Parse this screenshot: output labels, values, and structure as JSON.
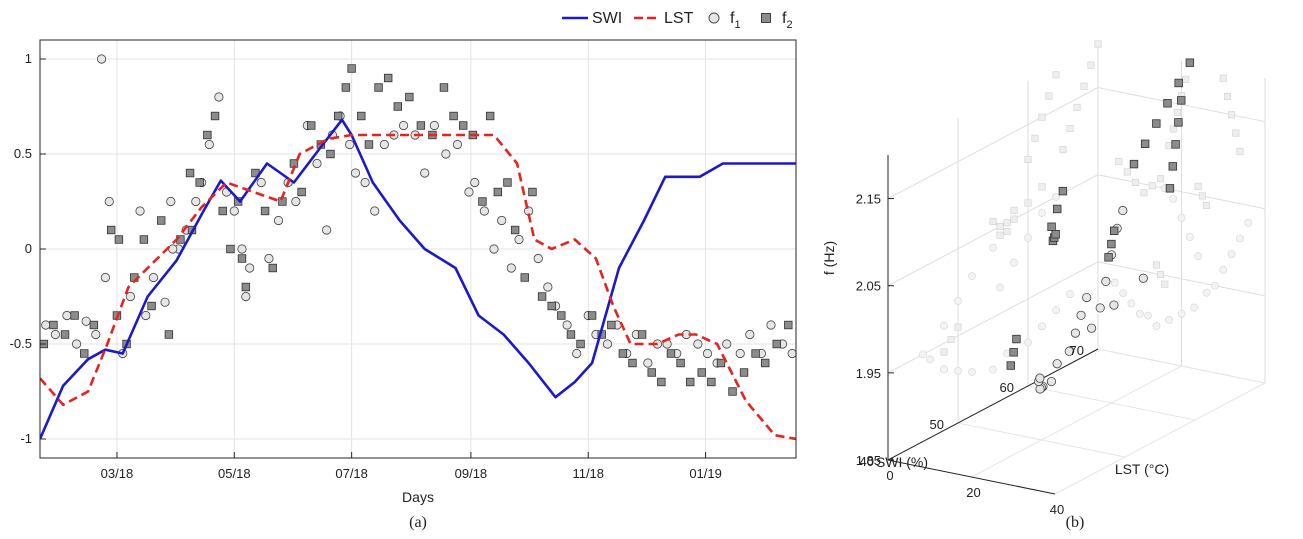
{
  "chart_data": [
    {
      "panel": "(a)",
      "type": "line",
      "xlabel": "Days",
      "ylabel": "",
      "ylim": [
        -1.1,
        1.1
      ],
      "yticks": [
        -1,
        -0.5,
        0,
        0.5,
        1
      ],
      "ytick_labels": [
        "-1",
        "-0.5",
        "0",
        "0.5",
        "1"
      ],
      "xlim": [
        "2018-01-20",
        "2019-02-17"
      ],
      "xticks": [
        "2018-03-01",
        "2018-05-01",
        "2018-07-01",
        "2018-09-01",
        "2018-11-01",
        "2019-01-01"
      ],
      "xtick_labels": [
        "03/18",
        "05/18",
        "07/18",
        "09/18",
        "11/18",
        "01/19"
      ],
      "grid": true,
      "legend_position": "top-right",
      "series": [
        {
          "name": "SWI",
          "kind": "line",
          "color": "#1a1acc",
          "style": "solid",
          "x": [
            "2018-01-20",
            "2018-02-01",
            "2018-02-14",
            "2018-02-23",
            "2018-03-04",
            "2018-03-17",
            "2018-04-01",
            "2018-04-15",
            "2018-04-24",
            "2018-05-04",
            "2018-05-18",
            "2018-06-01",
            "2018-06-16",
            "2018-06-26",
            "2018-07-01",
            "2018-07-12",
            "2018-07-26",
            "2018-08-08",
            "2018-08-24",
            "2018-09-05",
            "2018-09-18",
            "2018-10-01",
            "2018-10-15",
            "2018-10-25",
            "2018-11-03",
            "2018-11-17",
            "2018-11-30",
            "2018-12-11",
            "2018-12-29",
            "2019-01-10",
            "2019-01-31",
            "2019-02-17"
          ],
          "y": [
            -1.0,
            -0.72,
            -0.58,
            -0.53,
            -0.55,
            -0.25,
            -0.06,
            0.2,
            0.36,
            0.25,
            0.45,
            0.35,
            0.55,
            0.68,
            0.6,
            0.35,
            0.15,
            0.0,
            -0.1,
            -0.35,
            -0.45,
            -0.6,
            -0.78,
            -0.7,
            -0.6,
            -0.1,
            0.15,
            0.38,
            0.38,
            0.45,
            0.45,
            0.45
          ]
        },
        {
          "name": "LST",
          "kind": "line",
          "color": "#e8221e",
          "style": "dashed",
          "x": [
            "2018-01-20",
            "2018-02-01",
            "2018-02-14",
            "2018-02-24",
            "2018-03-07",
            "2018-03-19",
            "2018-04-01",
            "2018-04-14",
            "2018-04-27",
            "2018-05-11",
            "2018-05-25",
            "2018-06-04",
            "2018-06-19",
            "2018-07-01",
            "2018-07-15",
            "2018-08-01",
            "2018-08-22",
            "2018-09-13",
            "2018-09-25",
            "2018-10-04",
            "2018-10-13",
            "2018-10-25",
            "2018-11-05",
            "2018-11-14",
            "2018-11-23",
            "2018-12-07",
            "2018-12-18",
            "2018-12-27",
            "2019-01-07",
            "2019-01-22",
            "2019-02-06",
            "2019-02-17"
          ],
          "y": [
            -0.68,
            -0.82,
            -0.75,
            -0.5,
            -0.2,
            -0.08,
            0.05,
            0.22,
            0.35,
            0.3,
            0.25,
            0.5,
            0.58,
            0.6,
            0.6,
            0.6,
            0.6,
            0.6,
            0.45,
            0.05,
            0.0,
            0.05,
            -0.05,
            -0.3,
            -0.5,
            -0.5,
            -0.45,
            -0.45,
            -0.5,
            -0.8,
            -0.98,
            -1.0
          ]
        },
        {
          "name": "f1",
          "kind": "scatter",
          "marker": "circle",
          "color": "#e6e6e6",
          "x": [
            "2018-01-23",
            "2018-01-28",
            "2018-02-03",
            "2018-02-08",
            "2018-02-13",
            "2018-02-18",
            "2018-02-23",
            "2018-02-25",
            "2018-03-04",
            "2018-03-08",
            "2018-03-13",
            "2018-03-16",
            "2018-03-20",
            "2018-03-26",
            "2018-03-29",
            "2018-04-02",
            "2018-04-06",
            "2018-04-11",
            "2018-04-14",
            "2018-04-18",
            "2018-04-23",
            "2018-04-27",
            "2018-05-01",
            "2018-05-05",
            "2018-05-09",
            "2018-05-15",
            "2018-05-19",
            "2018-05-24",
            "2018-05-29",
            "2018-06-02",
            "2018-06-08",
            "2018-06-13",
            "2018-06-18",
            "2018-06-21",
            "2018-06-25",
            "2018-06-30",
            "2018-07-03",
            "2018-07-08",
            "2018-07-13",
            "2018-07-18",
            "2018-07-23",
            "2018-07-28",
            "2018-08-03",
            "2018-08-08",
            "2018-08-13",
            "2018-08-19",
            "2018-08-25",
            "2018-08-31",
            "2018-09-03",
            "2018-09-08",
            "2018-09-13",
            "2018-09-17",
            "2018-09-22",
            "2018-09-26",
            "2018-10-01",
            "2018-10-06",
            "2018-10-11",
            "2018-10-15",
            "2018-10-21",
            "2018-10-26",
            "2018-11-01",
            "2018-11-05",
            "2018-11-11",
            "2018-11-16",
            "2018-11-21",
            "2018-11-26",
            "2018-12-02",
            "2018-12-07",
            "2018-12-12",
            "2018-12-17",
            "2018-12-22",
            "2018-12-28",
            "2019-01-02",
            "2019-01-07",
            "2019-01-12",
            "2019-01-19",
            "2019-01-24",
            "2019-01-30",
            "2019-02-04",
            "2019-02-10",
            "2019-02-15",
            "2018-02-21",
            "2018-05-07",
            "2018-03-30"
          ],
          "y": [
            -0.4,
            -0.45,
            -0.35,
            -0.5,
            -0.38,
            -0.45,
            -0.15,
            0.25,
            -0.55,
            -0.25,
            0.2,
            -0.35,
            -0.15,
            -0.28,
            0.25,
            0.0,
            0.1,
            0.25,
            0.35,
            0.55,
            0.8,
            0.3,
            0.2,
            0.0,
            -0.1,
            0.35,
            -0.05,
            0.15,
            0.35,
            0.25,
            0.65,
            0.45,
            0.1,
            0.6,
            0.7,
            0.55,
            0.4,
            0.35,
            0.2,
            0.55,
            0.6,
            0.65,
            0.6,
            0.4,
            0.65,
            0.5,
            0.55,
            0.3,
            0.35,
            0.2,
            0.0,
            0.15,
            -0.1,
            0.05,
            0.2,
            -0.05,
            -0.2,
            -0.3,
            -0.4,
            -0.55,
            -0.35,
            -0.45,
            -0.5,
            -0.4,
            -0.55,
            -0.45,
            -0.6,
            -0.5,
            -0.5,
            -0.55,
            -0.45,
            -0.5,
            -0.55,
            -0.6,
            -0.5,
            -0.55,
            -0.45,
            -0.55,
            -0.4,
            -0.5,
            -0.55,
            1.0,
            -0.25,
            0.0
          ]
        },
        {
          "name": "f2",
          "kind": "scatter",
          "marker": "square",
          "color": "#8c8c8c",
          "x": [
            "2018-01-22",
            "2018-01-27",
            "2018-02-02",
            "2018-02-07",
            "2018-02-12",
            "2018-02-17",
            "2018-02-26",
            "2018-03-02",
            "2018-03-06",
            "2018-03-10",
            "2018-03-15",
            "2018-03-19",
            "2018-03-24",
            "2018-03-28",
            "2018-04-03",
            "2018-04-09",
            "2018-04-13",
            "2018-04-17",
            "2018-04-21",
            "2018-04-25",
            "2018-04-29",
            "2018-05-03",
            "2018-05-07",
            "2018-05-12",
            "2018-05-17",
            "2018-05-21",
            "2018-05-26",
            "2018-06-01",
            "2018-06-05",
            "2018-06-10",
            "2018-06-15",
            "2018-06-20",
            "2018-06-24",
            "2018-06-28",
            "2018-07-01",
            "2018-07-06",
            "2018-07-10",
            "2018-07-15",
            "2018-07-20",
            "2018-07-25",
            "2018-07-31",
            "2018-08-06",
            "2018-08-12",
            "2018-08-18",
            "2018-08-23",
            "2018-08-28",
            "2018-09-02",
            "2018-09-07",
            "2018-09-11",
            "2018-09-15",
            "2018-09-20",
            "2018-09-24",
            "2018-09-29",
            "2018-10-03",
            "2018-10-08",
            "2018-10-13",
            "2018-10-18",
            "2018-10-23",
            "2018-10-28",
            "2018-11-03",
            "2018-11-08",
            "2018-11-13",
            "2018-11-19",
            "2018-11-24",
            "2018-11-29",
            "2018-12-04",
            "2018-12-09",
            "2018-12-14",
            "2018-12-19",
            "2018-12-24",
            "2018-12-30",
            "2019-01-04",
            "2019-01-09",
            "2019-01-15",
            "2019-01-21",
            "2019-01-27",
            "2019-02-01",
            "2019-02-07",
            "2019-02-13",
            "2018-05-05",
            "2018-04-08",
            "2018-03-01"
          ],
          "y": [
            -0.5,
            -0.4,
            -0.45,
            -0.35,
            -0.55,
            -0.4,
            0.1,
            0.05,
            -0.5,
            -0.15,
            0.05,
            -0.3,
            0.15,
            -0.45,
            0.05,
            0.1,
            0.35,
            0.6,
            0.7,
            0.2,
            0.0,
            0.25,
            -0.2,
            0.4,
            0.2,
            -0.1,
            0.25,
            0.45,
            0.3,
            0.65,
            0.55,
            0.5,
            0.7,
            0.85,
            0.95,
            0.7,
            0.55,
            0.85,
            0.9,
            0.75,
            0.8,
            0.65,
            0.6,
            0.85,
            0.7,
            0.65,
            0.6,
            0.25,
            0.7,
            0.3,
            0.35,
            0.1,
            -0.15,
            0.3,
            -0.25,
            -0.3,
            -0.35,
            -0.45,
            -0.5,
            -0.35,
            -0.45,
            -0.4,
            -0.55,
            -0.6,
            -0.45,
            -0.65,
            -0.7,
            -0.55,
            -0.6,
            -0.7,
            -0.65,
            -0.7,
            -0.6,
            -0.75,
            -0.65,
            -0.55,
            -0.6,
            -0.5,
            -0.4,
            -0.05,
            0.4,
            -0.35
          ]
        }
      ]
    },
    {
      "panel": "(b)",
      "type": "scatter",
      "projection": "3d",
      "zlabel": "f (Hz)",
      "xlabel": "LST (°C)",
      "ylabel": "SWI (%)",
      "zlim": [
        1.85,
        2.2
      ],
      "zticks": [
        1.85,
        1.95,
        2.05,
        2.15
      ],
      "ztick_labels": [
        "1.85",
        "1.95",
        "2.05",
        "2.15"
      ],
      "xticks": [
        0,
        20,
        40
      ],
      "xtick_labels": [
        "0",
        "20",
        "40"
      ],
      "yticks": [
        40,
        50,
        60,
        70
      ],
      "ytick_labels": [
        "40",
        "50",
        "60",
        "70"
      ],
      "grid": true,
      "series": [
        {
          "name": "f1",
          "marker": "circle",
          "color": "#e6e6e6",
          "points": [
            {
              "lst": 4,
              "swi": 66,
              "f": 1.93
            },
            {
              "lst": 6,
              "swi": 64,
              "f": 1.92
            },
            {
              "lst": 8,
              "swi": 62,
              "f": 1.91
            },
            {
              "lst": 10,
              "swi": 60,
              "f": 1.9
            },
            {
              "lst": 12,
              "swi": 57,
              "f": 1.9
            },
            {
              "lst": 14,
              "swi": 55,
              "f": 1.89
            },
            {
              "lst": 17,
              "swi": 52,
              "f": 1.9
            },
            {
              "lst": 20,
              "swi": 50,
              "f": 1.91
            },
            {
              "lst": 23,
              "swi": 48,
              "f": 1.92
            },
            {
              "lst": 26,
              "swi": 46,
              "f": 1.94
            },
            {
              "lst": 28,
              "swi": 45,
              "f": 1.95
            },
            {
              "lst": 30,
              "swi": 48,
              "f": 1.97
            },
            {
              "lst": 32,
              "swi": 50,
              "f": 1.99
            },
            {
              "lst": 34,
              "swi": 52,
              "f": 2.01
            },
            {
              "lst": 36,
              "swi": 55,
              "f": 2.03
            },
            {
              "lst": 24,
              "swi": 56,
              "f": 1.98
            },
            {
              "lst": 22,
              "swi": 58,
              "f": 2.0
            },
            {
              "lst": 20,
              "swi": 60,
              "f": 2.02
            },
            {
              "lst": 18,
              "swi": 62,
              "f": 2.04
            },
            {
              "lst": 16,
              "swi": 64,
              "f": 2.05
            }
          ]
        },
        {
          "name": "f2",
          "marker": "square",
          "color": "#8c8c8c",
          "points": [
            {
              "lst": 22,
              "swi": 70,
              "f": 2.2
            },
            {
              "lst": 21,
              "swi": 69,
              "f": 2.18
            },
            {
              "lst": 20,
              "swi": 68,
              "f": 2.16
            },
            {
              "lst": 19,
              "swi": 67,
              "f": 2.14
            },
            {
              "lst": 18,
              "swi": 66,
              "f": 2.12
            },
            {
              "lst": 17,
              "swi": 65,
              "f": 2.1
            },
            {
              "lst": 30,
              "swi": 64,
              "f": 2.19
            },
            {
              "lst": 31,
              "swi": 63,
              "f": 2.17
            },
            {
              "lst": 32,
              "swi": 62,
              "f": 2.15
            },
            {
              "lst": 33,
              "swi": 61,
              "f": 2.13
            },
            {
              "lst": 34,
              "swi": 60,
              "f": 2.11
            },
            {
              "lst": 5,
              "swi": 62,
              "f": 2.07
            },
            {
              "lst": 7,
              "swi": 60,
              "f": 2.06
            },
            {
              "lst": 9,
              "swi": 58,
              "f": 2.05
            },
            {
              "lst": 11,
              "swi": 57,
              "f": 2.04
            },
            {
              "lst": 13,
              "swi": 56,
              "f": 2.05
            },
            {
              "lst": 15,
              "swi": 55,
              "f": 2.06
            },
            {
              "lst": 24,
              "swi": 58,
              "f": 2.06
            },
            {
              "lst": 25,
              "swi": 57,
              "f": 2.05
            },
            {
              "lst": 26,
              "swi": 56,
              "f": 2.04
            },
            {
              "lst": 14,
              "swi": 50,
              "f": 1.96
            },
            {
              "lst": 15,
              "swi": 49,
              "f": 1.95
            },
            {
              "lst": 16,
              "swi": 48,
              "f": 1.94
            }
          ]
        }
      ]
    }
  ],
  "legend": {
    "items": [
      {
        "label": "SWI",
        "kind": "line",
        "color": "#1a1acc",
        "style": "solid"
      },
      {
        "label": "LST",
        "kind": "line",
        "color": "#e8221e",
        "style": "dashed"
      },
      {
        "label": "f",
        "sub": "1",
        "kind": "circle",
        "color": "#e6e6e6"
      },
      {
        "label": "f",
        "sub": "2",
        "kind": "square",
        "color": "#8c8c8c"
      }
    ]
  },
  "captions": {
    "a": "(a)",
    "b": "(b)"
  }
}
